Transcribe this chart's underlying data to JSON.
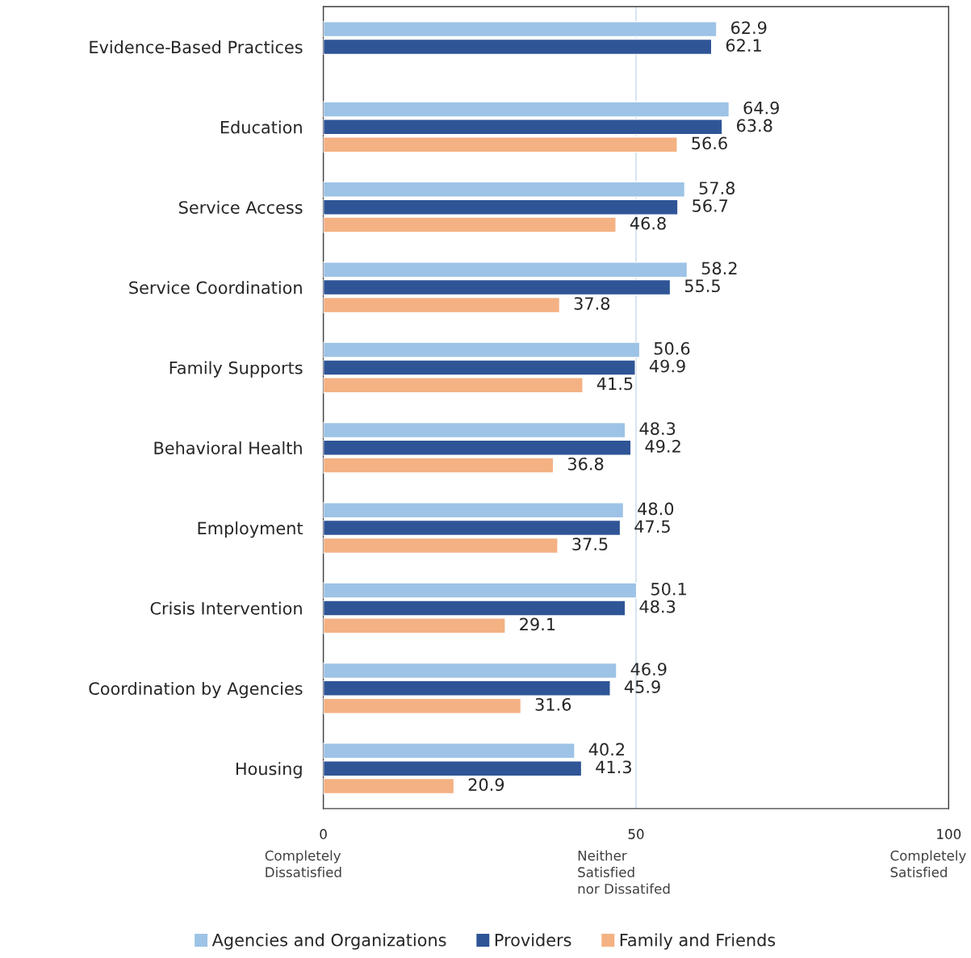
{
  "chart_data": {
    "type": "bar",
    "orientation": "horizontal",
    "categories": [
      "Evidence-Based Practices",
      "Education",
      "Service Access",
      "Service Coordination",
      "Family Supports",
      "Behavioral Health",
      "Employment",
      "Crisis Intervention",
      "Coordination by Agencies",
      "Housing"
    ],
    "series": [
      {
        "name": "Agencies and Organizations",
        "color": "#9dc3e6",
        "values": [
          62.9,
          64.9,
          57.8,
          58.2,
          50.6,
          48.3,
          48.0,
          50.1,
          46.9,
          40.2
        ],
        "value_labels": [
          "62.9",
          "64.9",
          "57.8",
          "58.2",
          "50.6",
          "48.3",
          "48.0",
          "50.1",
          "46.9",
          "40.2"
        ]
      },
      {
        "name": "Providers",
        "color": "#2f5597",
        "values": [
          62.1,
          63.8,
          56.7,
          55.5,
          49.9,
          49.2,
          47.5,
          48.3,
          45.9,
          41.3
        ],
        "value_labels": [
          "62.1",
          "63.8",
          "56.7",
          "55.5",
          "49.9",
          "49.2",
          "47.5",
          "48.3",
          "45.9",
          "41.3"
        ]
      },
      {
        "name": "Family and Friends",
        "color": "#f4b183",
        "values": [
          null,
          56.6,
          46.8,
          37.8,
          41.5,
          36.8,
          37.5,
          29.1,
          31.6,
          20.9
        ],
        "value_labels": [
          null,
          "56.6",
          "46.8",
          "37.8",
          "41.5",
          "36.8",
          "37.5",
          "29.1",
          "31.6",
          "20.9"
        ]
      }
    ],
    "xlim": [
      0,
      100
    ],
    "xticks": [
      0,
      50,
      100
    ],
    "grid": "x",
    "legend": "bottom",
    "annotations": [
      "Completely\nDissatisfied",
      "Neither\nSatisfied\nnor Dissatifed",
      "Completely\nSatisfied"
    ]
  }
}
